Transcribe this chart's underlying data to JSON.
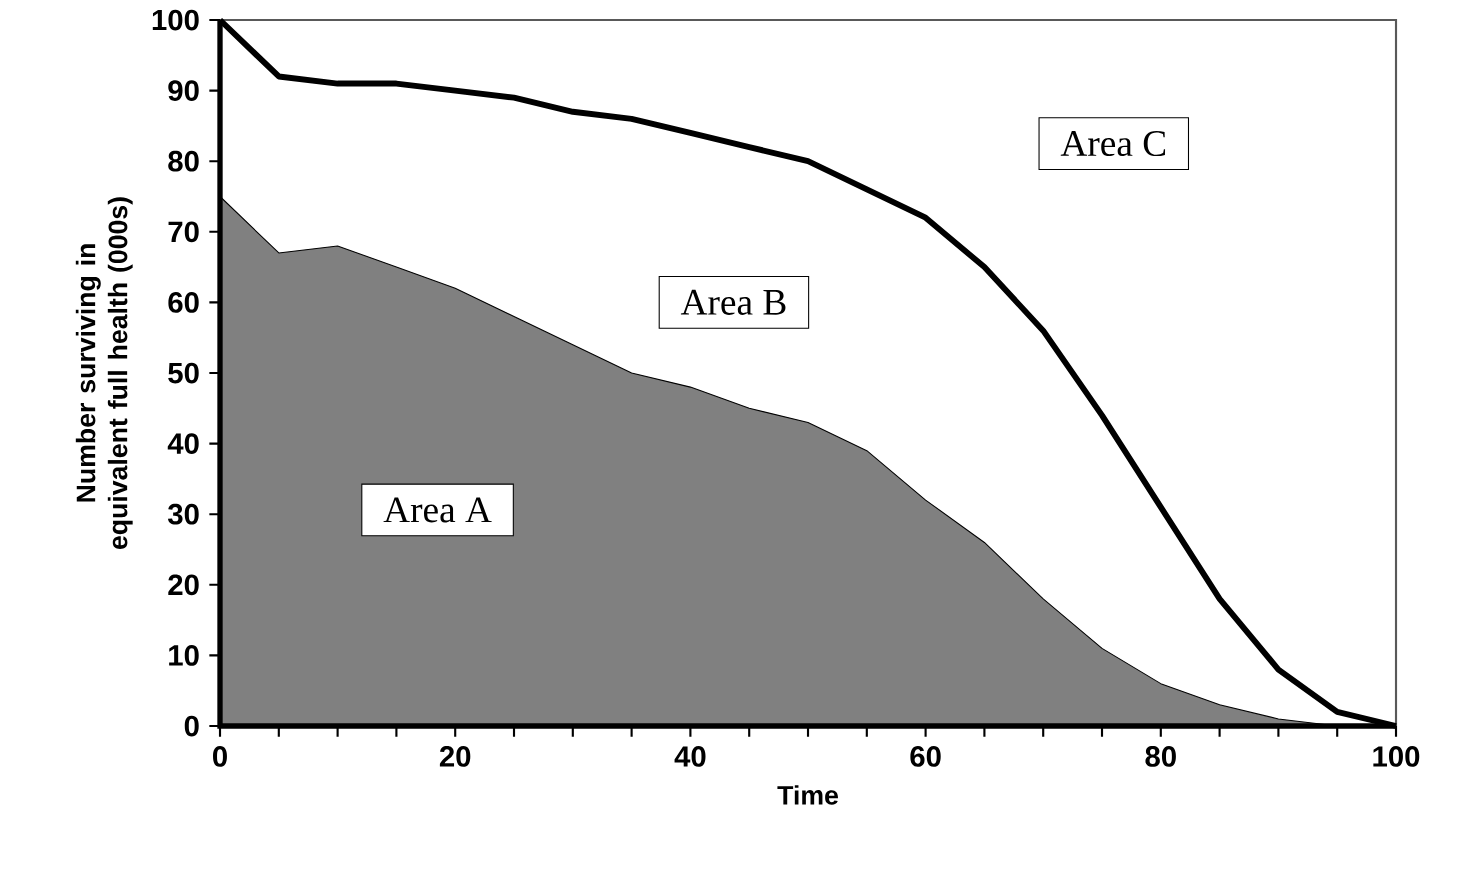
{
  "chart_data": {
    "type": "line",
    "xlabel": "Time",
    "ylabel": "Number surviving in equivalent full health (000s)",
    "x": [
      0,
      5,
      10,
      15,
      20,
      25,
      30,
      35,
      40,
      45,
      50,
      55,
      60,
      65,
      70,
      75,
      80,
      85,
      90,
      95,
      100
    ],
    "series": [
      {
        "type": "area",
        "color": "#808080",
        "values": [
          75,
          67,
          68,
          65,
          62,
          58,
          54,
          50,
          48,
          45,
          43,
          39,
          32,
          26,
          18,
          11,
          6,
          3,
          1,
          0,
          0
        ]
      },
      {
        "color": "#000000",
        "values": [
          100,
          92,
          91,
          91,
          90,
          89,
          87,
          86,
          84,
          82,
          80,
          76,
          72,
          65,
          56,
          44,
          31,
          18,
          8,
          2,
          0
        ]
      }
    ],
    "xlim": [
      0,
      100
    ],
    "ylim": [
      0,
      100
    ],
    "xticks": [
      0,
      {
        "value": 5,
        "label": null
      },
      {
        "value": 10,
        "label": null
      },
      {
        "value": 15,
        "label": null
      },
      20,
      {
        "value": 25,
        "label": null
      },
      {
        "value": 30,
        "label": null
      },
      {
        "value": 35,
        "label": null
      },
      40,
      {
        "value": 45,
        "label": null
      },
      {
        "value": 50,
        "label": null
      },
      {
        "value": 55,
        "label": null
      },
      60,
      {
        "value": 65,
        "label": null
      },
      {
        "value": 70,
        "label": null
      },
      {
        "value": 75,
        "label": null
      },
      80,
      {
        "value": 85,
        "label": null
      },
      {
        "value": 90,
        "label": null
      },
      {
        "value": 95,
        "label": null
      },
      100
    ],
    "yticks": [
      0,
      10,
      20,
      30,
      40,
      50,
      60,
      70,
      80,
      90,
      100
    ],
    "annotations": [
      "Area A",
      "Area B",
      "Area C"
    ]
  }
}
